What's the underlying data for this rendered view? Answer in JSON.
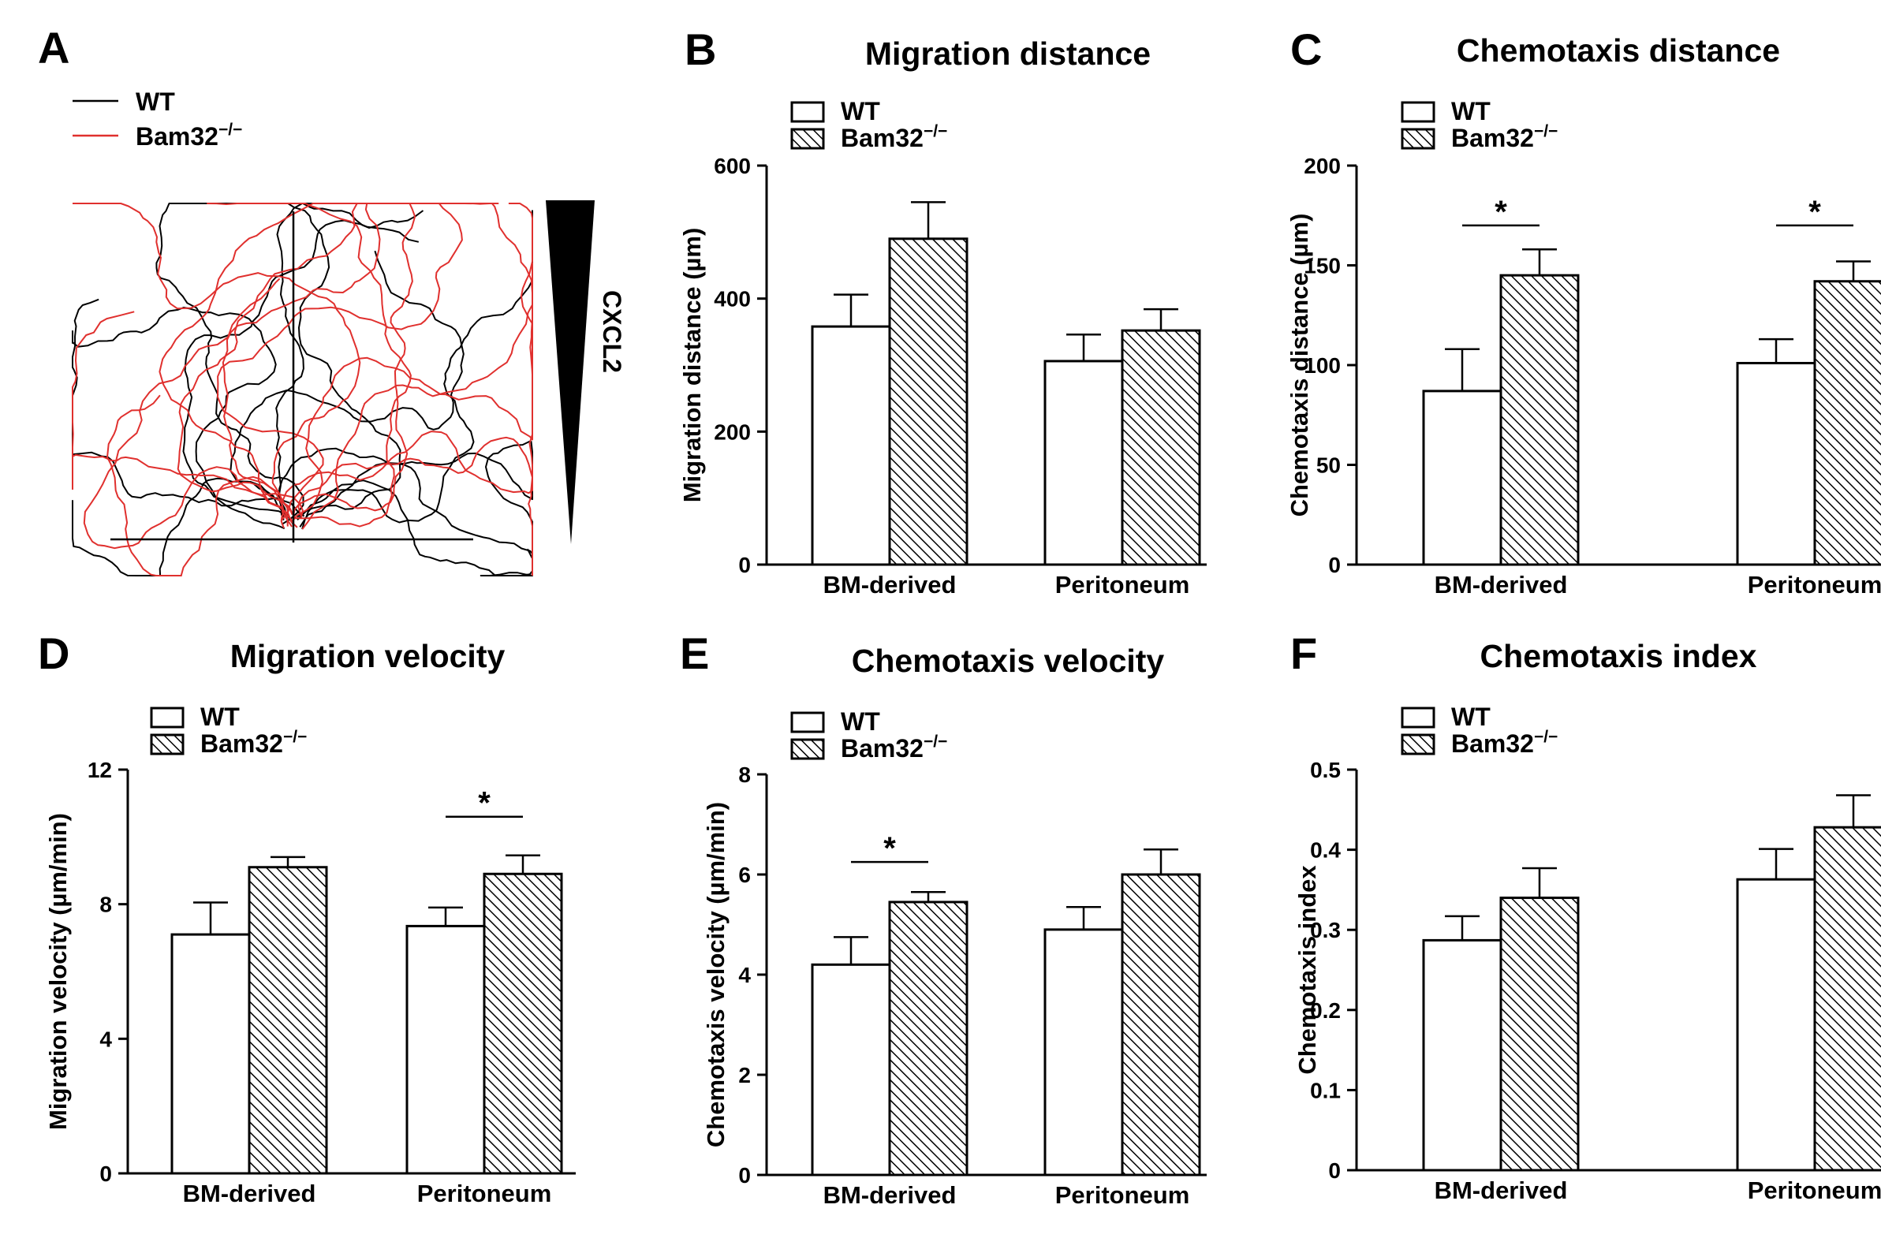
{
  "colors": {
    "wt_track": "#000000",
    "ko_track": "#e0302e",
    "bar_stroke": "#000000",
    "bar_fill_wt": "#ffffff"
  },
  "panel_a": {
    "letter": "A",
    "legend": [
      {
        "label": "WT",
        "color": "#000000"
      },
      {
        "label": "Bam32",
        "sup": "−/−",
        "color": "#e0302e"
      }
    ],
    "gradient_label": "CXCL2"
  },
  "chart_data": [
    {
      "panel": "B",
      "type": "bar",
      "title": "Migration distance",
      "ylabel": "Migration distance (µm)",
      "xlabel": "",
      "categories": [
        "BM-derived",
        "Peritoneum"
      ],
      "series": [
        {
          "name": "WT",
          "values": [
            358,
            306
          ],
          "errors": [
            48,
            40
          ],
          "pattern": "none"
        },
        {
          "name": "Bam32",
          "sup": "−/−",
          "values": [
            490,
            352
          ],
          "errors": [
            55,
            32
          ],
          "pattern": "hatch"
        }
      ],
      "ylim": [
        0,
        600
      ],
      "yticks": [
        0,
        200,
        400,
        600
      ],
      "ytick_labels": [
        "0",
        "200",
        "400",
        "600"
      ],
      "significance": []
    },
    {
      "panel": "C",
      "type": "bar",
      "title": "Chemotaxis distance",
      "ylabel": "Chemotaxis distance (µm)",
      "xlabel": "",
      "categories": [
        "BM-derived",
        "Peritoneum"
      ],
      "series": [
        {
          "name": "WT",
          "values": [
            87,
            101
          ],
          "errors": [
            21,
            12
          ],
          "pattern": "none"
        },
        {
          "name": "Bam32",
          "sup": "−/−",
          "values": [
            145,
            142
          ],
          "errors": [
            13,
            10
          ],
          "pattern": "hatch"
        }
      ],
      "ylim": [
        0,
        200
      ],
      "yticks": [
        0,
        50,
        100,
        150,
        200
      ],
      "ytick_labels": [
        "0",
        "50",
        "100",
        "150",
        "200"
      ],
      "significance": [
        {
          "category": 0,
          "label": "*",
          "y": 170
        },
        {
          "category": 1,
          "label": "*",
          "y": 170
        }
      ]
    },
    {
      "panel": "D",
      "type": "bar",
      "title": "Migration velocity",
      "ylabel": "Migration velocity (µm/min)",
      "xlabel": "",
      "categories": [
        "BM-derived",
        "Peritoneum"
      ],
      "series": [
        {
          "name": "WT",
          "values": [
            7.1,
            7.35
          ],
          "errors": [
            0.95,
            0.55
          ],
          "pattern": "none"
        },
        {
          "name": "Bam32",
          "sup": "−/−",
          "values": [
            9.1,
            8.9
          ],
          "errors": [
            0.3,
            0.55
          ],
          "pattern": "hatch"
        }
      ],
      "ylim": [
        0,
        12
      ],
      "yticks": [
        0,
        4,
        8,
        12
      ],
      "ytick_labels": [
        "0",
        "4",
        "8",
        "12"
      ],
      "significance": [
        {
          "category": 1,
          "label": "*",
          "y": 10.6
        }
      ]
    },
    {
      "panel": "E",
      "type": "bar",
      "title": "Chemotaxis velocity",
      "ylabel": "Chemotaxis velocity (µm/min)",
      "xlabel": "",
      "categories": [
        "BM-derived",
        "Peritoneum"
      ],
      "series": [
        {
          "name": "WT",
          "values": [
            4.2,
            4.9
          ],
          "errors": [
            0.55,
            0.45
          ],
          "pattern": "none"
        },
        {
          "name": "Bam32",
          "sup": "−/−",
          "values": [
            5.45,
            6.0
          ],
          "errors": [
            0.2,
            0.5
          ],
          "pattern": "hatch"
        }
      ],
      "ylim": [
        0,
        8
      ],
      "yticks": [
        0,
        2,
        4,
        6,
        8
      ],
      "ytick_labels": [
        "0",
        "2",
        "4",
        "6",
        "8"
      ],
      "significance": [
        {
          "category": 0,
          "label": "*",
          "y": 6.25
        }
      ]
    },
    {
      "panel": "F",
      "type": "bar",
      "title": "Chemotaxis index",
      "ylabel": "Chemotaxis index",
      "xlabel": "",
      "categories": [
        "BM-derived",
        "Peritoneum"
      ],
      "series": [
        {
          "name": "WT",
          "values": [
            0.287,
            0.363
          ],
          "errors": [
            0.03,
            0.038
          ],
          "pattern": "none"
        },
        {
          "name": "Bam32",
          "sup": "−/−",
          "values": [
            0.34,
            0.428
          ],
          "errors": [
            0.037,
            0.04
          ],
          "pattern": "hatch"
        }
      ],
      "ylim": [
        0,
        0.5
      ],
      "yticks": [
        0,
        0.1,
        0.2,
        0.3,
        0.4,
        0.5
      ],
      "ytick_labels": [
        "0",
        "0.1",
        "0.2",
        "0.3",
        "0.4",
        "0.5"
      ],
      "significance": []
    }
  ]
}
